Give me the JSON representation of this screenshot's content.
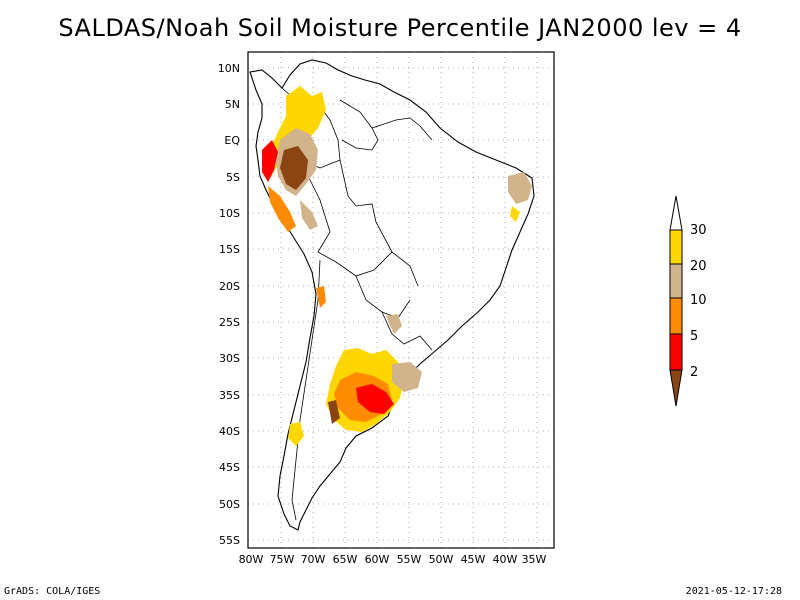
{
  "title": "SALDAS/Noah Soil Moisture Percentile JAN2000 lev = 4",
  "footer_left": "GrADS: COLA/IGES",
  "footer_right": "2021-05-12-17:28",
  "map": {
    "lat_labels": [
      "10N",
      "5N",
      "EQ",
      "5S",
      "10S",
      "15S",
      "20S",
      "25S",
      "30S",
      "35S",
      "40S",
      "45S",
      "50S",
      "55S"
    ],
    "lon_labels": [
      "80W",
      "75W",
      "70W",
      "65W",
      "60W",
      "55W",
      "50W",
      "45W",
      "40W",
      "35W"
    ],
    "grid": "dotted",
    "colors": {
      "drought_dark": "#8B4513",
      "red": "#FF0000",
      "orange": "#FF8C00",
      "tan": "#D2B48C",
      "yellow": "#FFD700"
    }
  },
  "colorbar": {
    "labels": [
      "2",
      "5",
      "10",
      "20",
      "30"
    ],
    "colors": [
      "#8B4513",
      "#FF0000",
      "#FF8C00",
      "#D2B48C",
      "#FFD700",
      "#FFFFFF"
    ]
  }
}
